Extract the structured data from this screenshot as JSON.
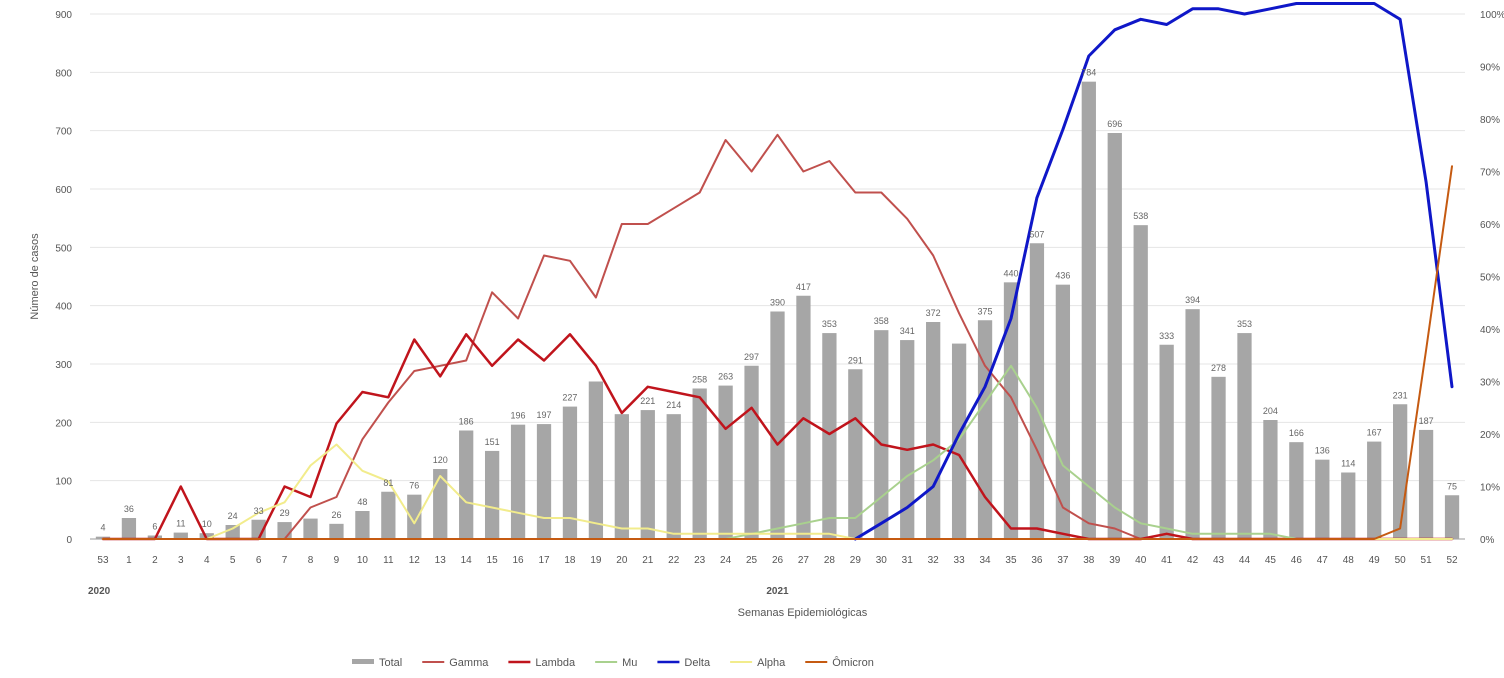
{
  "chart_data": {
    "type": "bar+line",
    "title": "",
    "xlabel": "Semanas Epidemiológicas",
    "ylabel": "Número de casos",
    "ylim": [
      0,
      900
    ],
    "y2lim": [
      0,
      100
    ],
    "y_ticks": [
      "0",
      "100",
      "200",
      "300",
      "400",
      "500",
      "600",
      "700",
      "800",
      "900"
    ],
    "y2_ticks": [
      "0%",
      "10%",
      "20%",
      "30%",
      "40%",
      "50%",
      "60%",
      "70%",
      "80%",
      "90%",
      "100%"
    ],
    "categories": [
      "53",
      "1",
      "2",
      "3",
      "4",
      "5",
      "6",
      "7",
      "8",
      "9",
      "10",
      "11",
      "12",
      "13",
      "14",
      "15",
      "16",
      "17",
      "18",
      "19",
      "20",
      "21",
      "22",
      "23",
      "24",
      "25",
      "26",
      "27",
      "28",
      "29",
      "30",
      "31",
      "32",
      "33",
      "34",
      "35",
      "36",
      "37",
      "38",
      "39",
      "40",
      "41",
      "42",
      "43",
      "44",
      "45",
      "46",
      "47",
      "48",
      "49",
      "50",
      "51",
      "52"
    ],
    "year_labels": [
      {
        "label": "2020",
        "at_category_index": 0
      },
      {
        "label": "2021",
        "at_category_index": 26
      }
    ],
    "legend_position": "bottom",
    "bar_series": {
      "name": "Total",
      "color": "#a6a6a6",
      "values": [
        4,
        36,
        6,
        11,
        10,
        24,
        33,
        29,
        35,
        26,
        48,
        81,
        76,
        120,
        186,
        151,
        196,
        197,
        227,
        270,
        214,
        221,
        214,
        258,
        263,
        297,
        390,
        417,
        353,
        291,
        358,
        341,
        372,
        335,
        375,
        440,
        507,
        436,
        784,
        696,
        538,
        333,
        394,
        278,
        353,
        204,
        166,
        136,
        114,
        167,
        231,
        187,
        75
      ],
      "data_labels": [
        "4",
        "36",
        "6",
        "11",
        "10",
        "24",
        "33",
        "29",
        "",
        "26",
        "48",
        "81",
        "76",
        "120",
        "186",
        "151",
        "196",
        "197",
        "227",
        "",
        "",
        "221",
        "214",
        "258",
        "263",
        "297",
        "390",
        "417",
        "353",
        "291",
        "358",
        "341",
        "372",
        "",
        "375",
        "440",
        "507",
        "436",
        "784",
        "696",
        "538",
        "333",
        "394",
        "278",
        "353",
        "204",
        "166",
        "136",
        "114",
        "167",
        "231",
        "187",
        "75"
      ]
    },
    "line_series": [
      {
        "name": "Gamma",
        "color": "#c0504d",
        "width": 2,
        "values": [
          0,
          0,
          0,
          0,
          0,
          0,
          0,
          0,
          6,
          8,
          19,
          26,
          32,
          33,
          34,
          47,
          42,
          54,
          53,
          46,
          60,
          60,
          63,
          66,
          76,
          70,
          77,
          70,
          72,
          66,
          66,
          61,
          54,
          43,
          33,
          27,
          17,
          6,
          3,
          2,
          0,
          0,
          0,
          0,
          0,
          0,
          0,
          0,
          0,
          0,
          0,
          0,
          0
        ]
      },
      {
        "name": "Lambda",
        "color": "#c0141c",
        "width": 2.5,
        "values": [
          0,
          0,
          0,
          10,
          0,
          0,
          0,
          10,
          8,
          22,
          28,
          27,
          38,
          31,
          39,
          33,
          38,
          34,
          39,
          33,
          24,
          29,
          28,
          27,
          21,
          25,
          18,
          23,
          20,
          23,
          18,
          17,
          18,
          16,
          8,
          2,
          2,
          1,
          0,
          0,
          0,
          1,
          0,
          0,
          0,
          0,
          0,
          0,
          0,
          0,
          0,
          0,
          0
        ]
      },
      {
        "name": "Mu",
        "color": "#a9d18e",
        "width": 2,
        "values": [
          0,
          0,
          0,
          0,
          0,
          0,
          0,
          0,
          0,
          0,
          0,
          0,
          0,
          0,
          0,
          0,
          0,
          0,
          0,
          0,
          0,
          0,
          0,
          0,
          0,
          1,
          2,
          3,
          4,
          4,
          8,
          12,
          15,
          19,
          26,
          33,
          25,
          14,
          10,
          6,
          3,
          2,
          1,
          1,
          1,
          1,
          0,
          0,
          0,
          0,
          0,
          0,
          0
        ]
      },
      {
        "name": "Delta",
        "color": "#0f17c8",
        "width": 3,
        "values": [
          null,
          null,
          null,
          null,
          null,
          null,
          null,
          null,
          null,
          null,
          null,
          null,
          null,
          null,
          null,
          null,
          null,
          null,
          null,
          null,
          null,
          null,
          null,
          null,
          null,
          null,
          null,
          null,
          null,
          0,
          3,
          6,
          10,
          20,
          29,
          42,
          65,
          78,
          92,
          97,
          99,
          98,
          101,
          101,
          100,
          101,
          102,
          102,
          102,
          102,
          99,
          68,
          29
        ]
      },
      {
        "name": "Alpha",
        "color": "#f2ec8c",
        "width": 2,
        "values": [
          0,
          0,
          0,
          0,
          0,
          2,
          5,
          7,
          14,
          18,
          13,
          11,
          3,
          12,
          7,
          6,
          5,
          4,
          4,
          3,
          2,
          2,
          1,
          1,
          1,
          1,
          1,
          1,
          1,
          0,
          0,
          0,
          0,
          0,
          0,
          0,
          0,
          0,
          0,
          0,
          0,
          0,
          0,
          0,
          0,
          0,
          0,
          0,
          0,
          0,
          0,
          0,
          0
        ]
      },
      {
        "name": "Ômicron",
        "color": "#c55a11",
        "width": 2,
        "values": [
          0,
          0,
          0,
          0,
          0,
          0,
          0,
          0,
          0,
          0,
          0,
          0,
          0,
          0,
          0,
          0,
          0,
          0,
          0,
          0,
          0,
          0,
          0,
          0,
          0,
          0,
          0,
          0,
          0,
          0,
          0,
          0,
          0,
          0,
          0,
          0,
          0,
          0,
          0,
          0,
          0,
          0,
          0,
          0,
          0,
          0,
          0,
          0,
          0,
          0,
          2,
          36,
          71
        ]
      }
    ]
  }
}
